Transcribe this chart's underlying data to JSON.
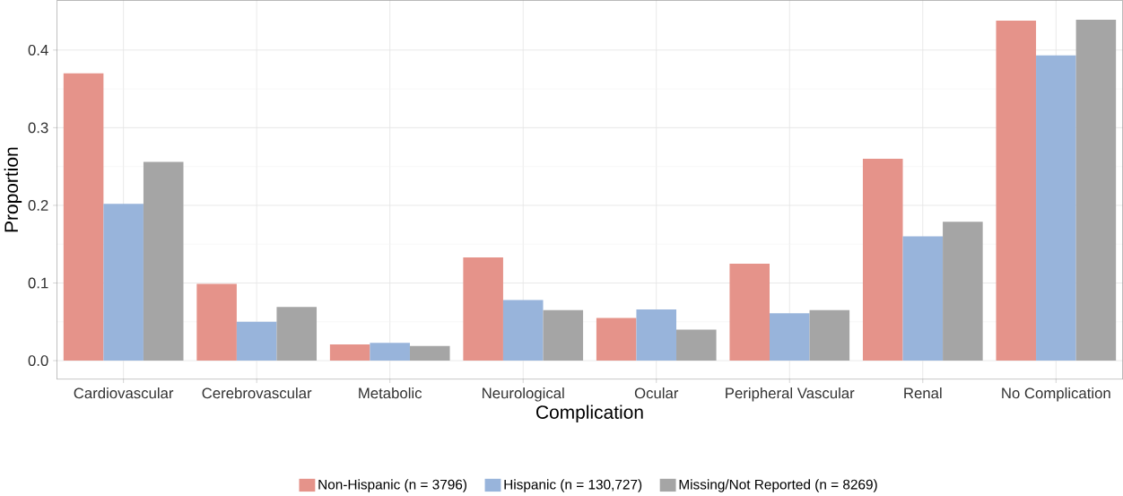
{
  "chart_data": {
    "type": "bar",
    "xlabel": "Complication",
    "ylabel": "Proportion",
    "categories": [
      "Cardiovascular",
      "Cerebrovascular",
      "Metabolic",
      "Neurological",
      "Ocular",
      "Peripheral Vascular",
      "Renal",
      "No Complication"
    ],
    "series": [
      {
        "name": "Non-Hispanic (n = 3796)",
        "color": "#e5938a",
        "values": [
          0.37,
          0.099,
          0.021,
          0.133,
          0.055,
          0.125,
          0.26,
          0.438
        ]
      },
      {
        "name": "Hispanic (n = 130,727)",
        "color": "#98b4db",
        "values": [
          0.202,
          0.05,
          0.023,
          0.078,
          0.066,
          0.061,
          0.16,
          0.393
        ]
      },
      {
        "name": "Missing/Not Reported (n = 8269)",
        "color": "#a5a5a5",
        "values": [
          0.256,
          0.069,
          0.019,
          0.065,
          0.04,
          0.065,
          0.179,
          0.439
        ]
      }
    ],
    "ylim": [
      -0.024,
      0.464
    ],
    "yticks": [
      {
        "value": 0,
        "label": "0.0"
      },
      0.1,
      0.2,
      0.3,
      0.4
    ],
    "grid": true,
    "legend": "bottom"
  }
}
